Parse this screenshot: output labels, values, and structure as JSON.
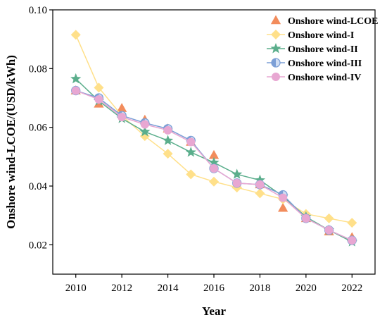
{
  "chart_data": {
    "type": "line",
    "xlabel": "Year",
    "ylabel": "Onshore wind-LCOE/(USD/kWh)",
    "xlim": [
      2009,
      2023
    ],
    "ylim": [
      0.01,
      0.1
    ],
    "x_ticks": [
      "2010",
      "2012",
      "2014",
      "2016",
      "2018",
      "2020",
      "2022"
    ],
    "y_ticks": [
      "0.02",
      "0.04",
      "0.06",
      "0.08",
      "0.10"
    ],
    "grid": false,
    "legend_position": "top-right",
    "x": [
      2010,
      2011,
      2012,
      2013,
      2014,
      2015,
      2016,
      2017,
      2018,
      2019,
      2020,
      2021,
      2022
    ],
    "series": [
      {
        "name": "Onshore wind-LCOE",
        "marker": "triangle",
        "line": false,
        "color": "#F28C5C",
        "values": [
          0.0725,
          0.068,
          0.0665,
          0.0625,
          0.0595,
          0.055,
          0.0505,
          0.0405,
          0.0405,
          0.0325,
          0.029,
          0.0245,
          0.0225
        ]
      },
      {
        "name": "Onshore wind-I",
        "marker": "diamond",
        "line": true,
        "color": "#FFE08A",
        "values": [
          0.0915,
          0.0735,
          0.064,
          0.057,
          0.051,
          0.044,
          0.0415,
          0.0395,
          0.0375,
          0.0355,
          0.0305,
          0.029,
          0.0275
        ]
      },
      {
        "name": "Onshore wind-II",
        "marker": "star",
        "line": true,
        "color": "#5BAE8C",
        "values": [
          0.0765,
          0.069,
          0.063,
          0.0585,
          0.0555,
          0.0515,
          0.048,
          0.044,
          0.042,
          0.0365,
          0.0295,
          0.025,
          0.021
        ]
      },
      {
        "name": "Onshore wind-III",
        "marker": "half-circle",
        "line": true,
        "color": "#7C9FD6",
        "values": [
          0.0725,
          0.07,
          0.064,
          0.0615,
          0.0595,
          0.0555,
          0.046,
          0.041,
          0.0405,
          0.037,
          0.029,
          0.025,
          0.0215
        ]
      },
      {
        "name": "Onshore wind-IV",
        "marker": "circle",
        "line": true,
        "color": "#E8A7D2",
        "values": [
          0.0725,
          0.0695,
          0.0635,
          0.061,
          0.059,
          0.055,
          0.046,
          0.041,
          0.0405,
          0.036,
          0.029,
          0.025,
          0.0215
        ]
      }
    ]
  }
}
